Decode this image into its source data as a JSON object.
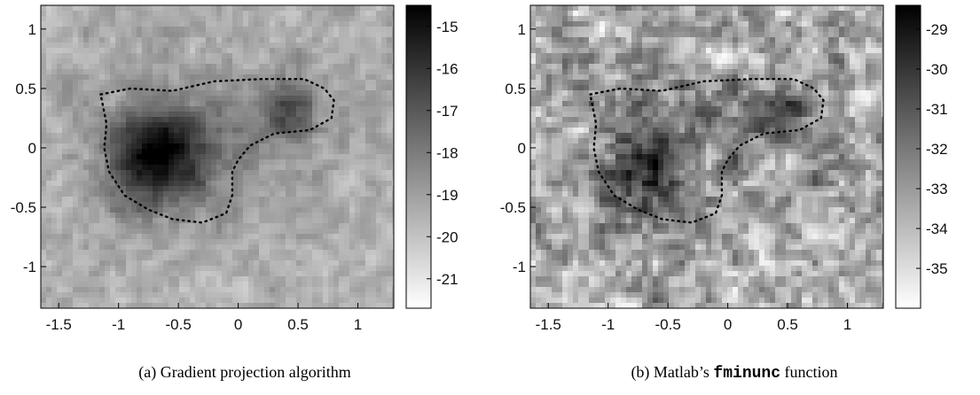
{
  "figures": [
    {
      "caption_prefix": "(a) Gradient projection algorithm",
      "caption_code": "",
      "caption_suffix": ""
    },
    {
      "caption_prefix": "(b) Matlab’s ",
      "caption_code": "fminunc",
      "caption_suffix": " function"
    }
  ],
  "chart_data": [
    {
      "type": "heatmap",
      "xlim": [
        -1.65,
        1.3
      ],
      "ylim": [
        -1.35,
        1.2
      ],
      "x_ticks": [
        -1.5,
        -1,
        -0.5,
        0,
        0.5,
        1
      ],
      "x_tick_labels": [
        "-1.5",
        "-1",
        "-0.5",
        "0",
        "0.5",
        "1"
      ],
      "y_ticks": [
        1,
        0.5,
        0,
        -0.5,
        -1
      ],
      "y_tick_labels": [
        "1",
        "0.5",
        "0",
        "-0.5",
        "-1"
      ],
      "colorbar": {
        "range": [
          -21.7,
          -14.5
        ],
        "ticks": [
          -15,
          -16,
          -17,
          -18,
          -19,
          -20,
          -21
        ],
        "tick_labels": [
          "-15",
          "-16",
          "-17",
          "-18",
          "-19",
          "-20",
          "-21"
        ],
        "colormap": "gray_reversed",
        "colors": {
          "low": "#ffffff",
          "high": "#000000"
        }
      },
      "features": [
        {
          "kind": "peak",
          "x": -0.68,
          "y": -0.07,
          "value": -14.8
        },
        {
          "kind": "peak",
          "x": 0.41,
          "y": 0.34,
          "value": -16.5
        }
      ],
      "dotted_outline": [
        [
          -1.15,
          0.45
        ],
        [
          -0.9,
          0.5
        ],
        [
          -0.55,
          0.48
        ],
        [
          -0.2,
          0.56
        ],
        [
          0.2,
          0.58
        ],
        [
          0.55,
          0.58
        ],
        [
          0.72,
          0.5
        ],
        [
          0.8,
          0.4
        ],
        [
          0.78,
          0.25
        ],
        [
          0.6,
          0.15
        ],
        [
          0.3,
          0.12
        ],
        [
          0.1,
          0.02
        ],
        [
          0.0,
          -0.1
        ],
        [
          -0.05,
          -0.2
        ],
        [
          -0.05,
          -0.4
        ],
        [
          -0.1,
          -0.55
        ],
        [
          -0.3,
          -0.63
        ],
        [
          -0.55,
          -0.6
        ],
        [
          -0.75,
          -0.52
        ],
        [
          -0.95,
          -0.4
        ],
        [
          -1.08,
          -0.2
        ],
        [
          -1.12,
          0.0
        ],
        [
          -1.1,
          0.2
        ],
        [
          -1.15,
          0.45
        ]
      ],
      "noise_level": 0.18
    },
    {
      "type": "heatmap",
      "xlim": [
        -1.65,
        1.3
      ],
      "ylim": [
        -1.35,
        1.2
      ],
      "x_ticks": [
        -1.5,
        -1,
        -0.5,
        0,
        0.5,
        1
      ],
      "x_tick_labels": [
        "-1.5",
        "-1",
        "-0.5",
        "0",
        "0.5",
        "1"
      ],
      "y_ticks": [
        1,
        0.5,
        0,
        -0.5,
        -1
      ],
      "y_tick_labels": [
        "1",
        "0.5",
        "0",
        "-0.5",
        "-1"
      ],
      "colorbar": {
        "range": [
          -36.0,
          -28.4
        ],
        "ticks": [
          -29,
          -30,
          -31,
          -32,
          -33,
          -34,
          -35
        ],
        "tick_labels": [
          "-29",
          "-30",
          "-31",
          "-32",
          "-33",
          "-34",
          "-35"
        ],
        "colormap": "gray_reversed",
        "colors": {
          "low": "#ffffff",
          "high": "#000000"
        }
      },
      "features": [
        {
          "kind": "peak",
          "x": -0.7,
          "y": -0.15,
          "value": -30.5
        },
        {
          "kind": "peak",
          "x": 0.42,
          "y": 0.3,
          "value": -31.5
        }
      ],
      "dotted_outline": [
        [
          -1.15,
          0.45
        ],
        [
          -0.9,
          0.5
        ],
        [
          -0.55,
          0.48
        ],
        [
          -0.2,
          0.56
        ],
        [
          0.2,
          0.58
        ],
        [
          0.55,
          0.58
        ],
        [
          0.72,
          0.5
        ],
        [
          0.8,
          0.4
        ],
        [
          0.78,
          0.25
        ],
        [
          0.6,
          0.15
        ],
        [
          0.3,
          0.12
        ],
        [
          0.1,
          0.02
        ],
        [
          0.0,
          -0.1
        ],
        [
          -0.05,
          -0.2
        ],
        [
          -0.05,
          -0.4
        ],
        [
          -0.1,
          -0.55
        ],
        [
          -0.3,
          -0.63
        ],
        [
          -0.55,
          -0.6
        ],
        [
          -0.75,
          -0.52
        ],
        [
          -0.95,
          -0.4
        ],
        [
          -1.08,
          -0.2
        ],
        [
          -1.12,
          0.0
        ],
        [
          -1.1,
          0.2
        ],
        [
          -1.15,
          0.45
        ]
      ],
      "noise_level": 0.45
    }
  ]
}
